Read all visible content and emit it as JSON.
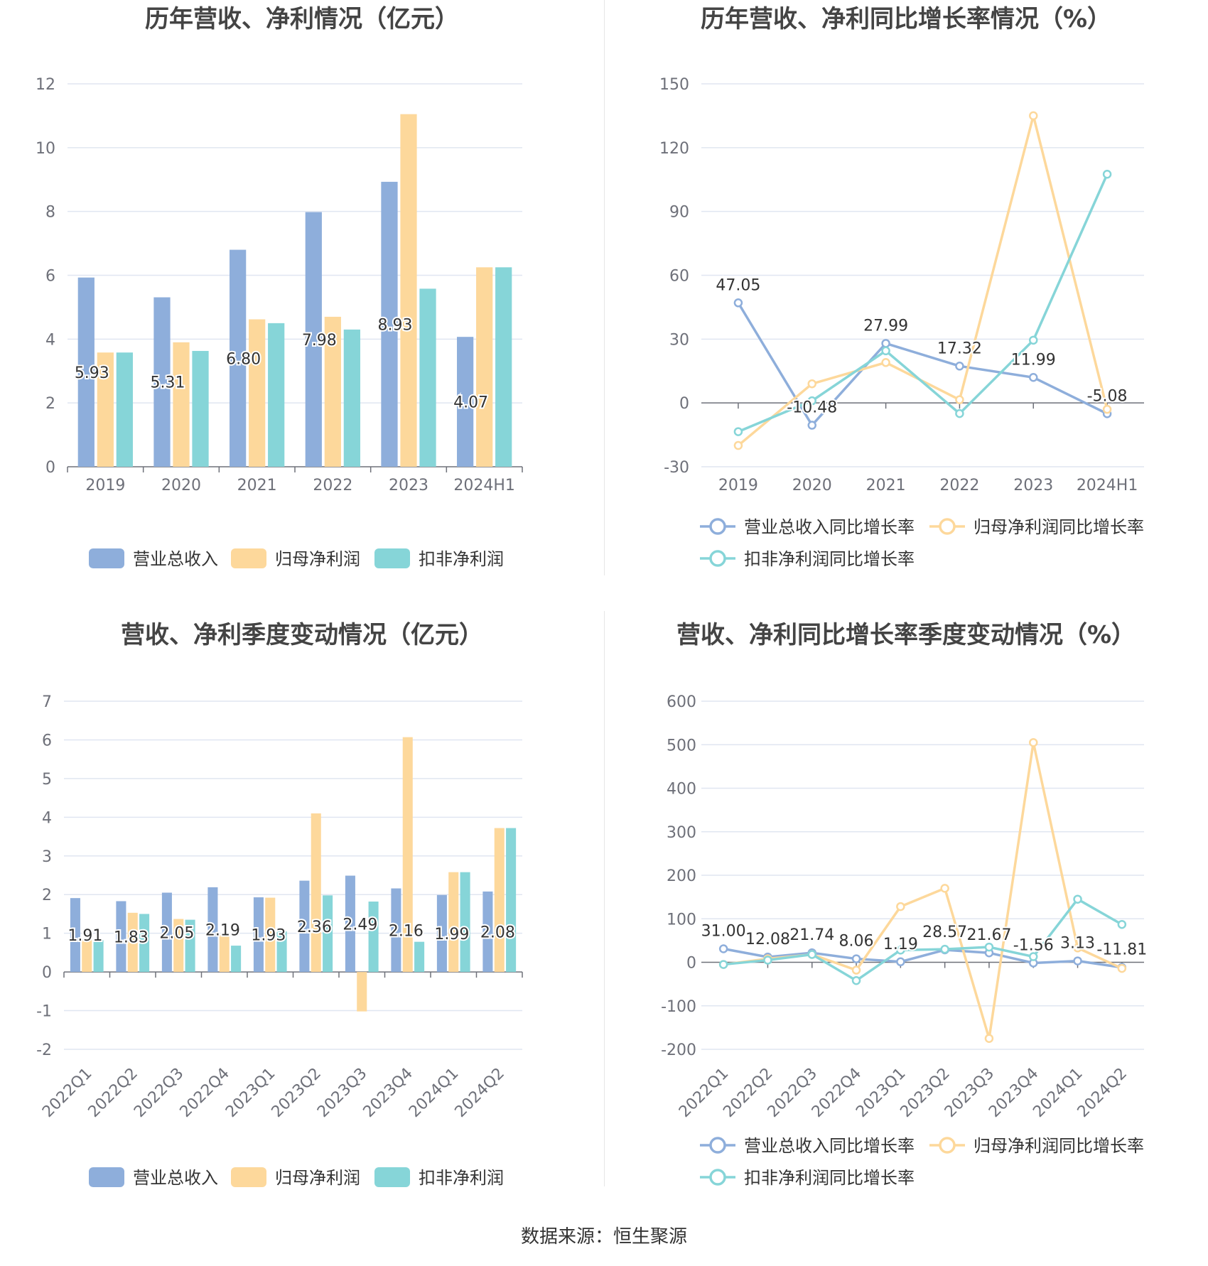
{
  "footer": {
    "source": "数据来源：恒生聚源"
  },
  "colors": {
    "blue": "#8eaedb",
    "orange": "#fdd89b",
    "teal": "#86d5d8"
  },
  "chart_data": [
    {
      "id": "c1",
      "type": "bar",
      "title": "历年营收、净利情况（亿元）",
      "categories": [
        "2019",
        "2020",
        "2021",
        "2022",
        "2023",
        "2024H1"
      ],
      "ylim": [
        0,
        12
      ],
      "yticks": [
        0,
        2,
        4,
        6,
        8,
        10,
        12
      ],
      "grid": true,
      "legend": "bottom",
      "series": [
        {
          "name": "营业总收入",
          "values": [
            5.93,
            5.31,
            6.8,
            7.98,
            8.93,
            4.07
          ],
          "labels": [
            "5.93",
            "5.31",
            "6.80",
            "7.98",
            "8.93",
            "4.07"
          ]
        },
        {
          "name": "归母净利润",
          "values": [
            3.58,
            3.9,
            4.62,
            4.7,
            11.05,
            6.25
          ]
        },
        {
          "name": "扣非净利润",
          "values": [
            3.58,
            3.63,
            4.5,
            4.3,
            5.58,
            6.25
          ]
        }
      ]
    },
    {
      "id": "c2",
      "type": "line",
      "title": "历年营收、净利同比增长率情况（%）",
      "categories": [
        "2019",
        "2020",
        "2021",
        "2022",
        "2023",
        "2024H1"
      ],
      "ylim": [
        -30,
        150
      ],
      "yticks": [
        -30,
        0,
        30,
        60,
        90,
        120,
        150
      ],
      "grid": true,
      "legend": "bottom",
      "series": [
        {
          "name": "营业总收入同比增长率",
          "values": [
            47.05,
            -10.48,
            27.99,
            17.32,
            11.99,
            -5.08
          ],
          "labels": [
            "47.05",
            "-10.48",
            "27.99",
            "17.32",
            "11.99",
            "-5.08"
          ]
        },
        {
          "name": "归母净利润同比增长率",
          "values": [
            -20.0,
            9.0,
            19.0,
            1.5,
            135.0,
            -3.0
          ]
        },
        {
          "name": "扣非净利润同比增长率",
          "values": [
            -13.5,
            1.0,
            24.5,
            -5.0,
            29.5,
            107.5
          ]
        }
      ]
    },
    {
      "id": "c3",
      "type": "bar",
      "title": "营收、净利季度变动情况（亿元）",
      "categories": [
        "2022Q1",
        "2022Q2",
        "2022Q3",
        "2022Q4",
        "2023Q1",
        "2023Q2",
        "2023Q3",
        "2023Q4",
        "2024Q1",
        "2024Q2"
      ],
      "ylim": [
        -2,
        7
      ],
      "yticks": [
        -2,
        -1,
        0,
        1,
        2,
        3,
        4,
        5,
        6,
        7
      ],
      "grid": true,
      "legend": "bottom",
      "series": [
        {
          "name": "营业总收入",
          "values": [
            1.91,
            1.83,
            2.05,
            2.19,
            1.93,
            2.36,
            2.49,
            2.16,
            1.99,
            2.08
          ],
          "labels": [
            "1.91",
            "1.83",
            "2.05",
            "2.19",
            "1.93",
            "2.36",
            "2.49",
            "2.16",
            "1.99",
            "2.08"
          ]
        },
        {
          "name": "归母净利润",
          "values": [
            0.82,
            1.53,
            1.37,
            0.95,
            1.92,
            4.1,
            -1.02,
            6.07,
            2.58,
            3.72
          ]
        },
        {
          "name": "扣非净利润",
          "values": [
            0.82,
            1.5,
            1.35,
            0.68,
            1.05,
            1.98,
            1.82,
            0.78,
            2.58,
            3.72
          ]
        }
      ]
    },
    {
      "id": "c4",
      "type": "line",
      "title": "营收、净利同比增长率季度变动情况（%）",
      "categories": [
        "2022Q1",
        "2022Q2",
        "2022Q3",
        "2022Q4",
        "2023Q1",
        "2023Q2",
        "2023Q3",
        "2023Q4",
        "2024Q1",
        "2024Q2"
      ],
      "ylim": [
        -200,
        600
      ],
      "yticks": [
        -200,
        -100,
        0,
        100,
        200,
        300,
        400,
        500,
        600
      ],
      "grid": true,
      "legend": "bottom",
      "series": [
        {
          "name": "营业总收入同比增长率",
          "values": [
            31.0,
            12.08,
            21.74,
            8.06,
            1.19,
            28.57,
            21.67,
            -1.56,
            3.13,
            -11.81
          ],
          "labels": [
            "31.00",
            "12.08",
            "21.74",
            "8.06",
            "1.19",
            "28.57",
            "21.67",
            "-1.56",
            "3.13",
            "-11.81"
          ]
        },
        {
          "name": "归母净利润同比增长率",
          "values": [
            -5.0,
            8.0,
            18.0,
            -18.0,
            128.0,
            170.0,
            -175.0,
            505.0,
            33.0,
            -14.0
          ]
        },
        {
          "name": "扣非净利润同比增长率",
          "values": [
            -5.0,
            5.0,
            18.0,
            -42.0,
            28.0,
            30.0,
            35.0,
            13.0,
            145.0,
            87.0
          ]
        }
      ]
    }
  ]
}
